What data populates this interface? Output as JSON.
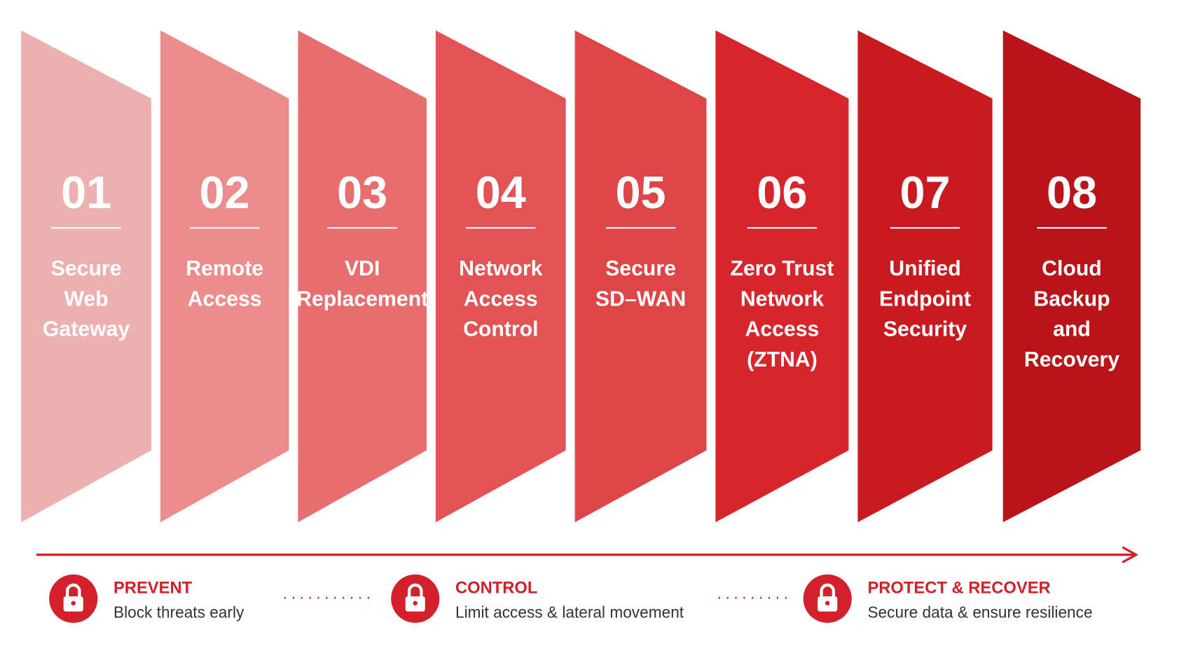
{
  "steps": [
    {
      "number": "01",
      "label": [
        "Secure",
        "Web",
        "Gateway"
      ]
    },
    {
      "number": "02",
      "label": [
        "Remote",
        "Access"
      ]
    },
    {
      "number": "03",
      "label": [
        "VDI",
        "Replacement"
      ]
    },
    {
      "number": "04",
      "label": [
        "Network",
        "Access",
        "Control"
      ]
    },
    {
      "number": "05",
      "label": [
        "Secure",
        "SD–WAN"
      ]
    },
    {
      "number": "06",
      "label": [
        "Zero Trust",
        "Network",
        "Access",
        "(ZTNA)"
      ]
    },
    {
      "number": "07",
      "label": [
        "Unified",
        "Endpoint",
        "Security"
      ]
    },
    {
      "number": "08",
      "label": [
        "Cloud",
        "Backup",
        "and",
        "Recovery"
      ]
    }
  ],
  "stages": [
    {
      "title": "PREVENT",
      "description": "Block threats early"
    },
    {
      "title": "CONTROL",
      "description": "Limit access & lateral movement"
    },
    {
      "title": "PROTECT & RECOVER",
      "description": "Secure data & ensure resilience"
    }
  ]
}
